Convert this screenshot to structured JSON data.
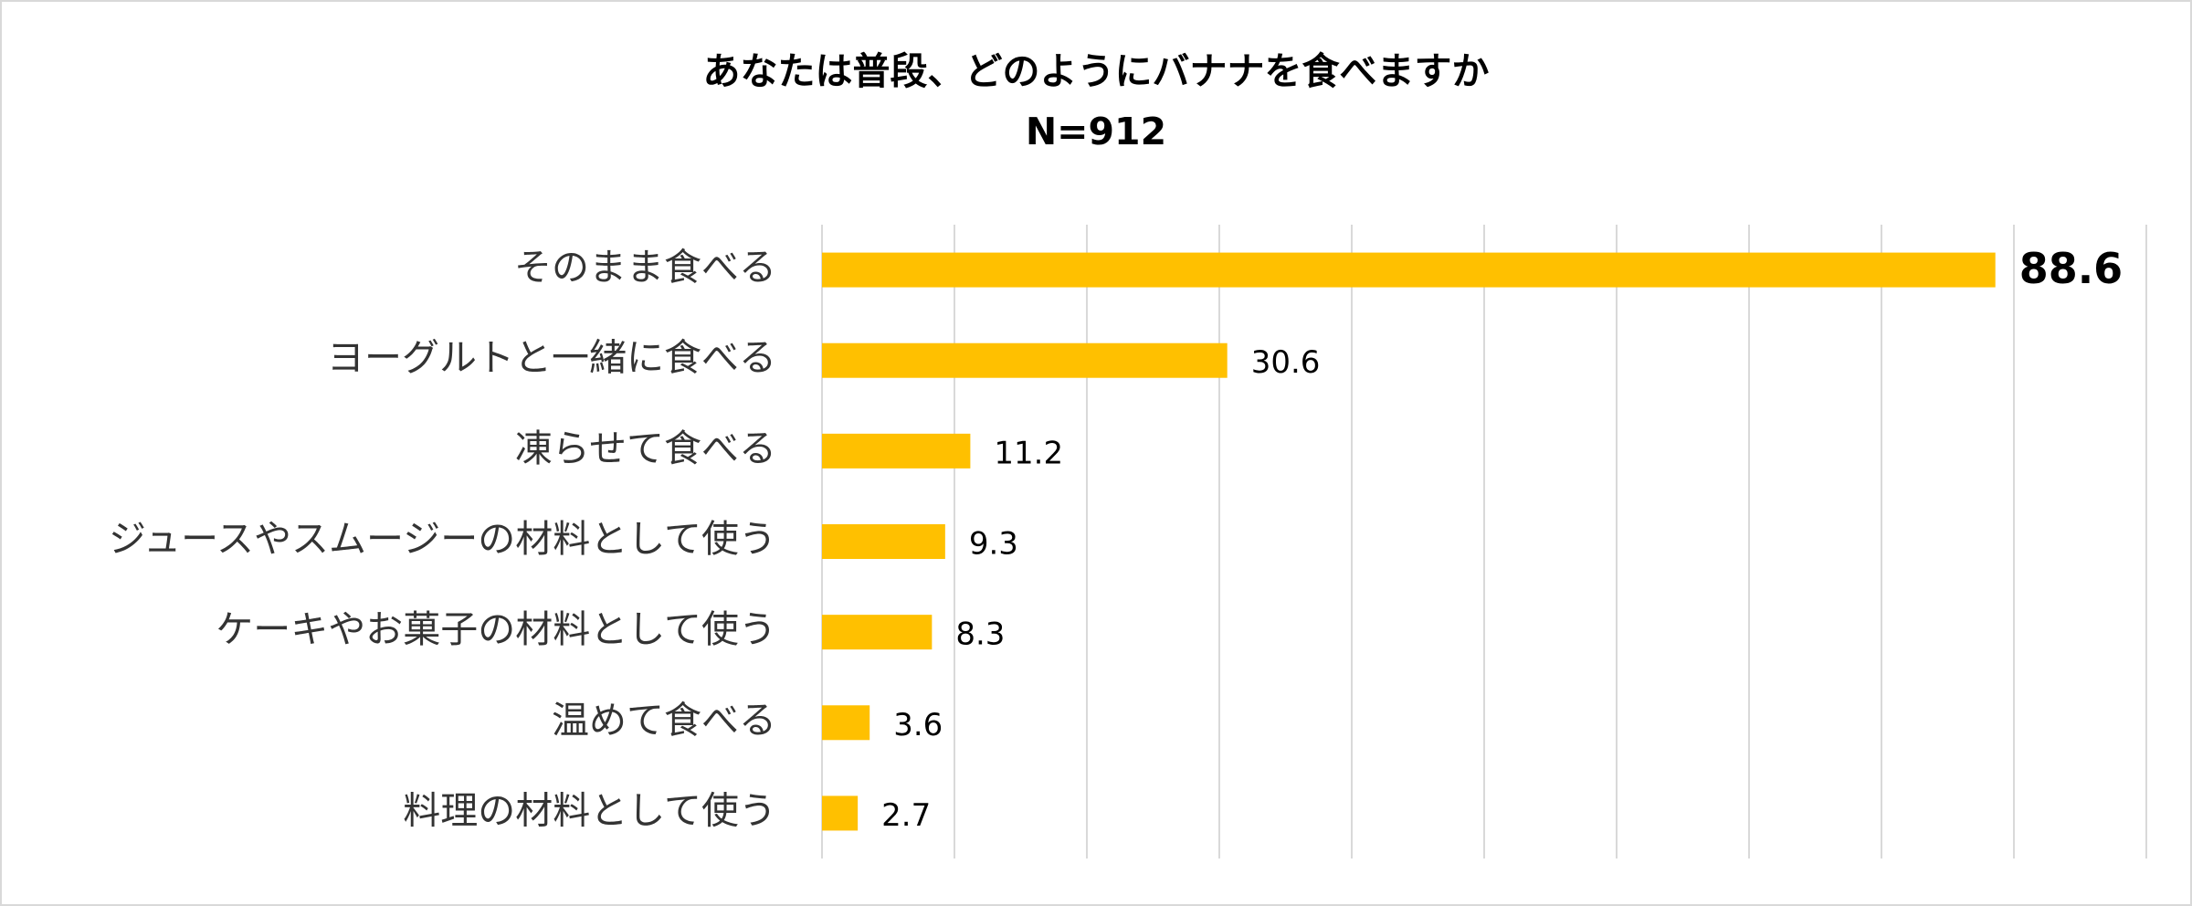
{
  "chart_data": {
    "type": "bar",
    "orientation": "horizontal",
    "title": "あなたは普段、どのようにバナナを食べますか",
    "subtitle": "N=912",
    "categories": [
      "そのまま食べる",
      "ヨーグルトと一緒に食べる",
      "凍らせて食べる",
      "ジュースやスムージーの材料として使う",
      "ケーキやお菓子の材料として使う",
      "温めて食べる",
      "料理の材料として使う"
    ],
    "values": [
      88.6,
      30.6,
      11.2,
      9.3,
      8.3,
      3.6,
      2.7
    ],
    "value_labels": [
      "88.6",
      "30.6",
      "11.2",
      "9.3",
      "8.3",
      "3.6",
      "2.7"
    ],
    "xlim": [
      0,
      100
    ],
    "grid": true,
    "highlight_index": 0,
    "bar_color": "#FFC000",
    "grid_color": "#D9D9D9"
  }
}
